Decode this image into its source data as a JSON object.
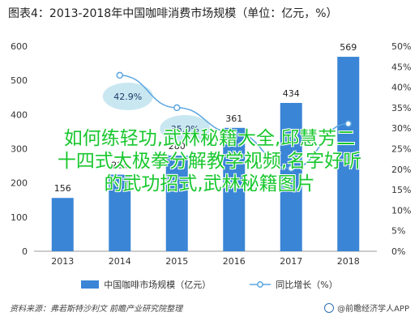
{
  "title": "图表4：2013-2018年中国咖啡消费市场规模（单位：亿元，%）",
  "colors": {
    "bar": "#3a85d6",
    "line": "#5aa5e0",
    "bubble": "#bfe3ee",
    "overlay_text": "#19c72f"
  },
  "chart_data": {
    "type": "bar",
    "categories": [
      "2013",
      "2014",
      "2015",
      "2016",
      "2017",
      "2018"
    ],
    "series": [
      {
        "name": "中国咖啡市场规模（亿元）",
        "type": "bar",
        "axis": "left",
        "values": [
          156,
          224,
          280,
          361,
          434,
          569
        ]
      },
      {
        "name": "同比增长（%）",
        "type": "line",
        "axis": "right",
        "values": [
          null,
          42.9,
          35.0,
          28.9,
          20.2,
          31.1
        ]
      }
    ],
    "bar_labels": [
      "156",
      "224",
      "280",
      "361",
      "434",
      "569"
    ],
    "line_labels": [
      "",
      "42.9%",
      "35.0%",
      "",
      "",
      ""
    ],
    "left_axis": {
      "ylim": [
        0,
        600
      ],
      "ticks": [
        "0",
        "100",
        "200",
        "300",
        "400",
        "500",
        "600"
      ]
    },
    "right_axis": {
      "ylim": [
        0,
        50
      ],
      "ticks": [
        "0%",
        "5%",
        "10%",
        "15%",
        "20%",
        "25%",
        "30%",
        "35%",
        "40%",
        "45%",
        "50%"
      ]
    },
    "legend_placement": "bottom",
    "grid": false
  },
  "legend": {
    "bar": "中国咖啡市场规模（亿元）",
    "line": "同比增长（%）"
  },
  "overlay": {
    "line1": "如何练轻功,武林秘籍大全,邱慧芳二",
    "line2": "十四式太极拳分解教学视频,名字好听",
    "line3": "的武功招式,武林秘籍图片"
  },
  "source": "资料来源：弗若斯特沙利文 前瞻产业研究院整理",
  "brand": "@前瞻经济学人APP"
}
